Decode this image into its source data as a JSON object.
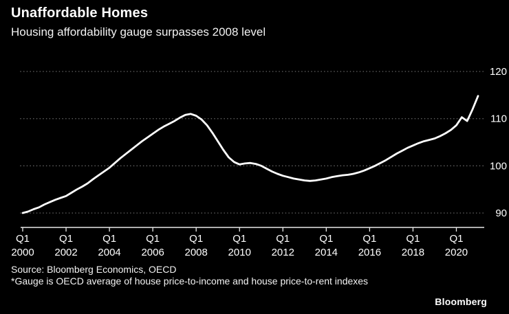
{
  "header": {
    "title": "Unaffordable Homes",
    "subtitle": "Housing affordability gauge surpasses 2008 level"
  },
  "footer": {
    "source": "Source: Bloomberg Economics, OECD",
    "note": "*Gauge is OECD average of house price-to-income and house price-to-rent indexes",
    "brand": "Bloomberg"
  },
  "chart_data": {
    "type": "line",
    "title": "Unaffordable Homes",
    "subtitle": "Housing affordability gauge surpasses 2008 level",
    "x_unit": "quarter",
    "x_start": "2000-Q1",
    "x_end": "2021-Q1",
    "x_ticks": {
      "quarter_label": "Q1",
      "years": [
        2000,
        2002,
        2004,
        2006,
        2008,
        2010,
        2012,
        2014,
        2016,
        2018,
        2020
      ]
    },
    "y_ticks": [
      90,
      100,
      110,
      120
    ],
    "ylim": [
      87,
      122
    ],
    "grid": "dotted-horizontal",
    "legend": "none",
    "line_color": "#ffffff",
    "background": "#000000",
    "series": [
      {
        "name": "OECD average of house price-to-income and price-to-rent indexes",
        "values": [
          90.0,
          90.3,
          90.8,
          91.2,
          91.8,
          92.3,
          92.8,
          93.2,
          93.6,
          94.3,
          95.0,
          95.6,
          96.3,
          97.2,
          98.0,
          98.8,
          99.6,
          100.6,
          101.6,
          102.5,
          103.4,
          104.3,
          105.2,
          106.0,
          106.8,
          107.6,
          108.3,
          108.9,
          109.5,
          110.2,
          110.8,
          111.0,
          110.6,
          109.8,
          108.6,
          107.0,
          105.2,
          103.4,
          101.8,
          100.8,
          100.3,
          100.5,
          100.6,
          100.4,
          100.0,
          99.4,
          98.8,
          98.3,
          97.9,
          97.6,
          97.3,
          97.1,
          96.9,
          96.8,
          96.9,
          97.1,
          97.3,
          97.6,
          97.8,
          98.0,
          98.1,
          98.3,
          98.6,
          99.0,
          99.5,
          100.0,
          100.6,
          101.2,
          101.9,
          102.6,
          103.2,
          103.8,
          104.3,
          104.8,
          105.2,
          105.5,
          105.8,
          106.3,
          106.9,
          107.6,
          108.6,
          110.3,
          109.5,
          112.0,
          114.8
        ]
      }
    ]
  }
}
